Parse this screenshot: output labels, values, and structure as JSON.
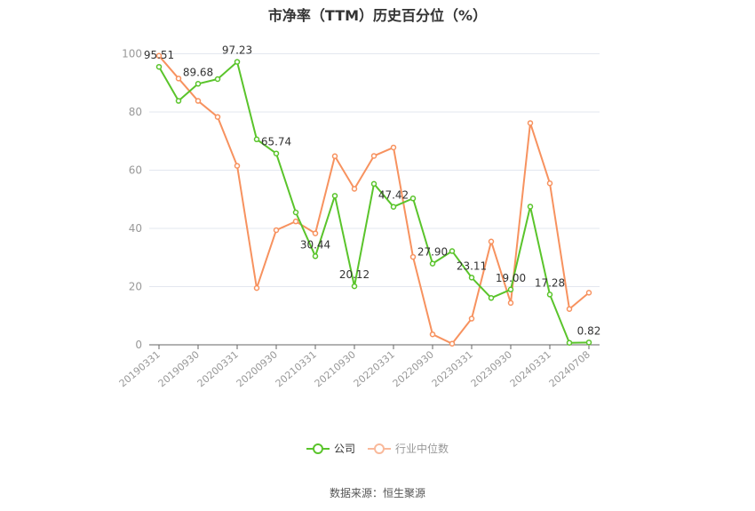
{
  "title": "市净率（TTM）历史百分位（%）",
  "source": "数据来源：恒生聚源",
  "legend": {
    "company": "公司",
    "industry": "行业中位数"
  },
  "colors": {
    "company": "#5ac42b",
    "industry": "#f7925f",
    "grid": "#e3e7ef",
    "axis": "#666666",
    "tick_label": "#999999",
    "data_label": "#333333"
  },
  "chart_data": {
    "type": "line",
    "title": "市净率（TTM）历史百分位（%）",
    "xlabel": "",
    "ylabel": "",
    "ylim": [
      0,
      100
    ],
    "yticks": [
      0,
      20,
      40,
      60,
      80,
      100
    ],
    "grid": true,
    "legend_position": "bottom",
    "x": [
      "20190331",
      "20190630",
      "20190930",
      "20191231",
      "20200331",
      "20200630",
      "20200930",
      "20201231",
      "20210331",
      "20210630",
      "20210930",
      "20211231",
      "20220331",
      "20220630",
      "20220930",
      "20221231",
      "20230331",
      "20230630",
      "20230930",
      "20231231",
      "20240331",
      "20240630",
      "20240708"
    ],
    "xtick_labels": [
      "20190331",
      "20190930",
      "20200331",
      "20200930",
      "20210331",
      "20210930",
      "20220331",
      "20220930",
      "20230331",
      "20230930",
      "20240331",
      "20240708"
    ],
    "xtick_indices": [
      0,
      2,
      4,
      6,
      8,
      10,
      12,
      14,
      16,
      18,
      20,
      22
    ],
    "series": [
      {
        "name": "公司",
        "values": [
          95.51,
          83.8,
          89.68,
          91.3,
          97.23,
          70.6,
          65.74,
          45.5,
          30.44,
          51.2,
          20.12,
          55.3,
          47.42,
          50.3,
          27.9,
          32.2,
          23.11,
          16.1,
          19.0,
          47.5,
          17.28,
          0.7,
          0.82
        ],
        "labels": {
          "0": "95.51",
          "2": "89.68",
          "4": "97.23",
          "6": "65.74",
          "8": "30.44",
          "10": "20.12",
          "12": "47.42",
          "14": "27.90",
          "16": "23.11",
          "18": "19.00",
          "20": "17.28",
          "22": "0.82"
        }
      },
      {
        "name": "行业中位数",
        "values": [
          99.3,
          91.5,
          83.8,
          78.3,
          61.5,
          19.5,
          39.4,
          42.4,
          38.3,
          64.8,
          53.6,
          64.9,
          67.8,
          30.2,
          3.6,
          0.4,
          9.0,
          35.5,
          14.4,
          76.2,
          55.5,
          12.3,
          17.9
        ]
      }
    ]
  }
}
